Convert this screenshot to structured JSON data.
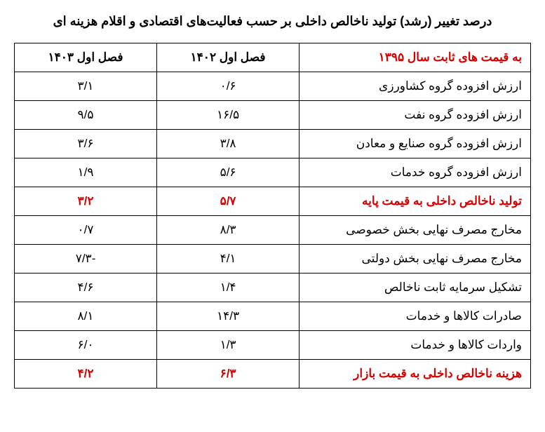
{
  "title": "درصد تغییر (رشد) تولید ناخالص داخلی بر حسب فعالیت‌های اقتصادی و اقلام هزینه ای",
  "table": {
    "header": {
      "label": "به قیمت های ثابت سال ۱۳۹۵",
      "col1": "فصل اول ۱۴۰۲",
      "col2": "فصل اول ۱۴۰۳"
    },
    "rows": [
      {
        "label": "ارزش افزوده گروه کشاورزی",
        "c1": "۰/۶",
        "c2": "۳/۱",
        "highlight": false
      },
      {
        "label": "ارزش افزوده گروه نفت",
        "c1": "۱۶/۵",
        "c2": "۹/۵",
        "highlight": false
      },
      {
        "label": "ارزش افزوده گروه صنایع و معادن",
        "c1": "۳/۸",
        "c2": "۳/۶",
        "highlight": false
      },
      {
        "label": "ارزش افزوده گروه خدمات",
        "c1": "۵/۶",
        "c2": "۱/۹",
        "highlight": false
      },
      {
        "label": "تولید ناخالص داخلی به قیمت پایه",
        "c1": "۵/۷",
        "c2": "۳/۲",
        "highlight": true
      },
      {
        "label": "مخارج مصرف نهایی بخش خصوصی",
        "c1": "۸/۳",
        "c2": "۰/۷",
        "highlight": false
      },
      {
        "label": "مخارج مصرف نهایی بخش دولتی",
        "c1": "۴/۱",
        "c2": "-۷/۳",
        "highlight": false
      },
      {
        "label": "تشکیل سرمایه ثابت ناخالص",
        "c1": "۱/۴",
        "c2": "۴/۶",
        "highlight": false
      },
      {
        "label": "صادرات کالاها و خدمات",
        "c1": "۱۴/۳",
        "c2": "۸/۱",
        "highlight": false
      },
      {
        "label": "واردات کالاها و خدمات",
        "c1": "۱/۳",
        "c2": "۶/۰",
        "highlight": false
      },
      {
        "label": "هزینه ناخالص داخلی به قیمت بازار",
        "c1": "۶/۳",
        "c2": "۴/۲",
        "highlight": true
      }
    ]
  },
  "colors": {
    "highlight": "#d50000",
    "text": "#000000",
    "border": "#000000",
    "background": "#ffffff"
  }
}
